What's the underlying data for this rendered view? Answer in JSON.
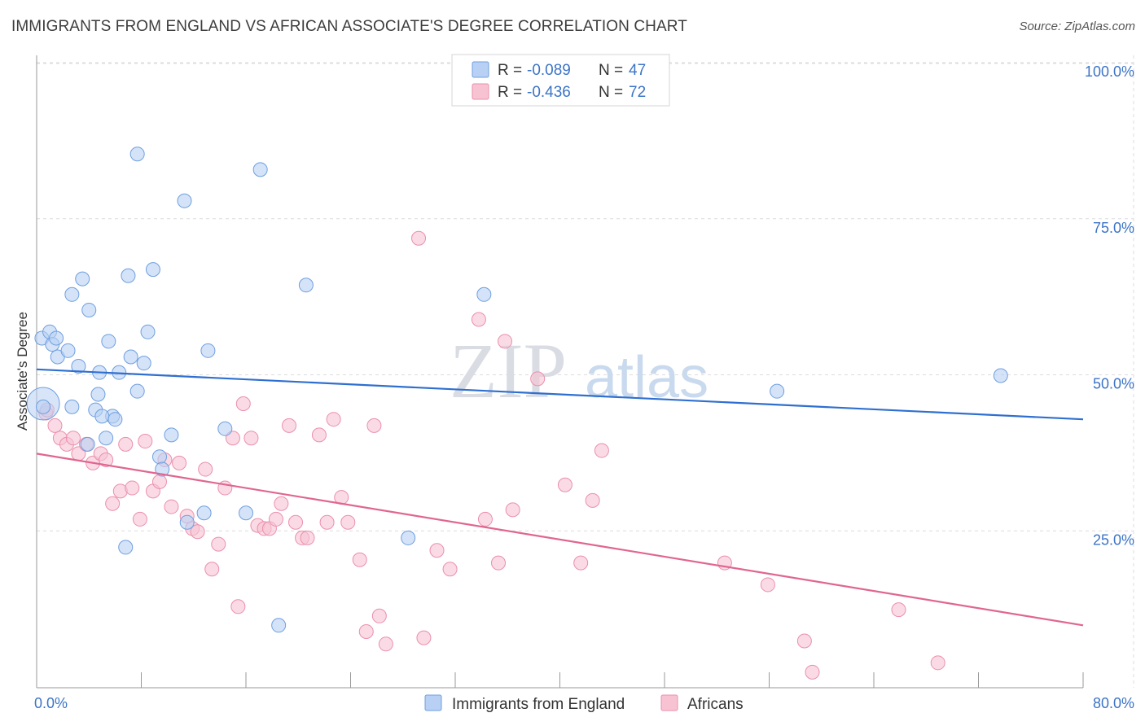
{
  "title": "IMMIGRANTS FROM ENGLAND VS AFRICAN ASSOCIATE'S DEGREE CORRELATION CHART",
  "source": "Source: ZipAtlas.com",
  "watermark": {
    "zip": "ZIP",
    "atlas": "atlas"
  },
  "colors": {
    "blue_fill": "#b8d0f3",
    "blue_stroke": "#6f9fe0",
    "blue_line": "#2f6fd0",
    "pink_fill": "#f7c3d3",
    "pink_stroke": "#eb8fab",
    "pink_line": "#e06690",
    "tick_color": "#3b74c7"
  },
  "legend": {
    "rows": [
      {
        "r_label": "R =",
        "r_value": "-0.089",
        "n_label": "N =",
        "n_value": "47",
        "series": "blue"
      },
      {
        "r_label": "R =",
        "r_value": "-0.436",
        "n_label": "N =",
        "n_value": "72",
        "series": "pink"
      }
    ]
  },
  "chart_data": {
    "type": "scatter",
    "ylabel": "Associate's Degree",
    "x_ticks": [
      {
        "value": 0,
        "label": "0.0%"
      },
      {
        "value": 80,
        "label": "80.0%"
      }
    ],
    "y_ticks": [
      {
        "value": 25,
        "label": "25.0%"
      },
      {
        "value": 50,
        "label": "50.0%"
      },
      {
        "value": 75,
        "label": "75.0%"
      },
      {
        "value": 100,
        "label": "100.0%"
      }
    ],
    "xlim": [
      0,
      80
    ],
    "ylim": [
      0,
      100
    ],
    "grid": true,
    "legend_position": "bottom",
    "series": [
      {
        "name": "Immigrants from England",
        "color_key": "blue",
        "trend": {
          "x0": 0,
          "y0": 51.0,
          "x1": 80,
          "y1": 43.0
        },
        "points": [
          [
            0.5,
            45.5
          ],
          [
            0.4,
            56
          ],
          [
            1.0,
            57
          ],
          [
            1.2,
            55
          ],
          [
            1.5,
            56
          ],
          [
            1.6,
            53
          ],
          [
            2.4,
            54
          ],
          [
            2.7,
            63
          ],
          [
            3.2,
            51.5
          ],
          [
            3.5,
            65.5
          ],
          [
            4.0,
            60.5
          ],
          [
            4.5,
            44.5
          ],
          [
            4.7,
            47
          ],
          [
            4.8,
            50.5
          ],
          [
            5.3,
            40
          ],
          [
            5.5,
            55.5
          ],
          [
            5.8,
            43.5
          ],
          [
            6.3,
            50.5
          ],
          [
            6.8,
            22.5
          ],
          [
            7.2,
            53
          ],
          [
            7.0,
            66
          ],
          [
            7.7,
            47.5
          ],
          [
            7.7,
            85.5
          ],
          [
            8.2,
            52
          ],
          [
            8.5,
            57
          ],
          [
            8.9,
            67
          ],
          [
            9.4,
            37
          ],
          [
            9.6,
            35
          ],
          [
            10.3,
            40.5
          ],
          [
            11.3,
            78
          ],
          [
            11.5,
            26.5
          ],
          [
            12.8,
            28
          ],
          [
            13.1,
            54
          ],
          [
            14.4,
            41.5
          ],
          [
            16.0,
            28
          ],
          [
            17.1,
            83
          ],
          [
            18.5,
            10
          ],
          [
            20.6,
            64.5
          ],
          [
            28.4,
            24
          ],
          [
            34.2,
            63
          ],
          [
            56.6,
            47.5
          ],
          [
            73.7,
            50
          ],
          [
            0.5,
            45
          ],
          [
            2.7,
            45
          ],
          [
            3.9,
            39
          ],
          [
            5.0,
            43.5
          ],
          [
            6.0,
            43
          ]
        ]
      },
      {
        "name": "Africans",
        "color_key": "pink",
        "trend": {
          "x0": 0,
          "y0": 37.5,
          "x1": 80,
          "y1": 10.0
        },
        "points": [
          [
            0.7,
            44
          ],
          [
            1.4,
            42
          ],
          [
            1.8,
            40
          ],
          [
            2.3,
            39
          ],
          [
            2.8,
            40
          ],
          [
            3.2,
            37.5
          ],
          [
            3.8,
            39
          ],
          [
            4.3,
            36
          ],
          [
            4.9,
            37.5
          ],
          [
            5.3,
            36.5
          ],
          [
            5.8,
            29.5
          ],
          [
            6.4,
            31.5
          ],
          [
            6.8,
            39
          ],
          [
            7.3,
            32
          ],
          [
            7.9,
            27
          ],
          [
            8.3,
            39.5
          ],
          [
            8.9,
            31.5
          ],
          [
            9.4,
            33
          ],
          [
            9.8,
            36.5
          ],
          [
            10.3,
            29
          ],
          [
            10.9,
            36
          ],
          [
            11.5,
            27.5
          ],
          [
            11.9,
            25.5
          ],
          [
            12.3,
            25
          ],
          [
            12.9,
            35
          ],
          [
            13.4,
            19
          ],
          [
            13.9,
            23
          ],
          [
            14.4,
            32
          ],
          [
            15.0,
            40
          ],
          [
            15.4,
            13
          ],
          [
            15.8,
            45.5
          ],
          [
            16.4,
            40
          ],
          [
            16.9,
            26
          ],
          [
            17.4,
            25.5
          ],
          [
            17.8,
            25.5
          ],
          [
            18.3,
            27
          ],
          [
            18.7,
            29.5
          ],
          [
            19.3,
            42
          ],
          [
            19.8,
            26.5
          ],
          [
            20.3,
            24
          ],
          [
            20.7,
            24
          ],
          [
            21.6,
            40.5
          ],
          [
            22.2,
            26.5
          ],
          [
            22.7,
            43
          ],
          [
            23.3,
            30.5
          ],
          [
            23.8,
            26.5
          ],
          [
            24.7,
            20.5
          ],
          [
            25.2,
            9
          ],
          [
            25.8,
            42
          ],
          [
            26.2,
            11.5
          ],
          [
            26.7,
            7
          ],
          [
            29.2,
            72
          ],
          [
            29.6,
            8
          ],
          [
            30.6,
            22
          ],
          [
            31.6,
            19
          ],
          [
            33.8,
            59
          ],
          [
            34.3,
            27
          ],
          [
            35.3,
            20
          ],
          [
            35.8,
            55.5
          ],
          [
            36.4,
            28.5
          ],
          [
            38.3,
            49.5
          ],
          [
            40.4,
            32.5
          ],
          [
            41.6,
            20
          ],
          [
            42.5,
            30
          ],
          [
            43.2,
            38
          ],
          [
            52.6,
            20
          ],
          [
            55.9,
            16.5
          ],
          [
            58.7,
            7.5
          ],
          [
            59.3,
            2.5
          ],
          [
            65.9,
            12.5
          ],
          [
            68.9,
            4
          ],
          [
            0.8,
            44.5
          ]
        ]
      }
    ]
  }
}
